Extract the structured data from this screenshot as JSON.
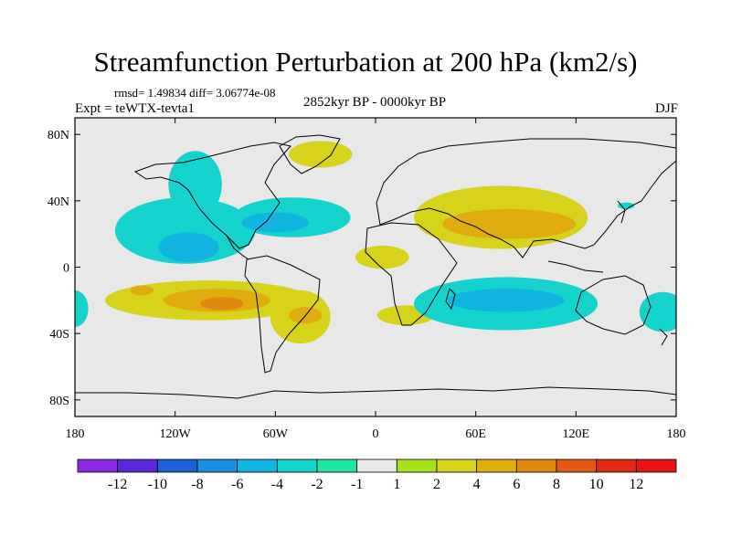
{
  "chart_data": {
    "type": "heatmap",
    "title": "Streamfunction Perturbation at 200 hPa (km2/s)",
    "stats": "rmsd= 1.49834 diff= 3.06774e-08",
    "experiment": "Expt = teWTX-tevta1",
    "period": "2852kyr BP - 0000kyr BP",
    "season": "DJF",
    "xlim": [
      -180,
      180
    ],
    "ylim": [
      -90,
      90
    ],
    "x_ticks": [
      {
        "value": -180,
        "label": "180"
      },
      {
        "value": -120,
        "label": "120W"
      },
      {
        "value": -60,
        "label": "60W"
      },
      {
        "value": 0,
        "label": "0"
      },
      {
        "value": 60,
        "label": "60E"
      },
      {
        "value": 120,
        "label": "120E"
      },
      {
        "value": 180,
        "label": "180"
      }
    ],
    "y_ticks": [
      {
        "value": 80,
        "label": "80N"
      },
      {
        "value": 40,
        "label": "40N"
      },
      {
        "value": 0,
        "label": "0"
      },
      {
        "value": -40,
        "label": "40S"
      },
      {
        "value": -80,
        "label": "80S"
      }
    ],
    "colorbar": {
      "labels": [
        "-12",
        "-10",
        "-8",
        "-6",
        "-4",
        "-2",
        "-1",
        "1",
        "2",
        "4",
        "6",
        "8",
        "10",
        "12"
      ],
      "colors": [
        "#8a2be2",
        "#5a28d8",
        "#1e5fd6",
        "#1a8ee0",
        "#12b4e0",
        "#14d2cc",
        "#1fe5a0",
        "#e8e8e8",
        "#a6e21e",
        "#d7d21a",
        "#e0ad10",
        "#e08a10",
        "#e05a14",
        "#e02a14",
        "#e61414"
      ]
    },
    "regions": [
      {
        "name": "n-america-west-negative",
        "lon": -114,
        "lat": 22,
        "rx": 42,
        "ry": 20,
        "level": -2
      },
      {
        "name": "n-america-west-inner",
        "lon": -112,
        "lat": 12,
        "rx": 18,
        "ry": 9,
        "level": -4
      },
      {
        "name": "alaska-arm",
        "lon": -108,
        "lat": 50,
        "rx": 16,
        "ry": 20,
        "level": -2
      },
      {
        "name": "north-atlantic-negative",
        "lon": -50,
        "lat": 30,
        "rx": 35,
        "ry": 12,
        "level": -2
      },
      {
        "name": "north-atlantic-inner",
        "lon": -60,
        "lat": 27,
        "rx": 20,
        "ry": 6,
        "level": -4
      },
      {
        "name": "greenland-positive",
        "lon": -33,
        "lat": 68,
        "rx": 19,
        "ry": 8,
        "level": 2
      },
      {
        "name": "south-pacific-positive",
        "lon": -100,
        "lat": -20,
        "rx": 62,
        "ry": 12,
        "level": 2
      },
      {
        "name": "south-pacific-mid",
        "lon": -95,
        "lat": -20,
        "rx": 32,
        "ry": 7,
        "level": 4
      },
      {
        "name": "south-pacific-core",
        "lon": -92,
        "lat": -22,
        "rx": 13,
        "ry": 4,
        "level": 6
      },
      {
        "name": "south-pacific-west",
        "lon": -140,
        "lat": -14,
        "rx": 7,
        "ry": 3,
        "level": 4
      },
      {
        "name": "south-america-positive",
        "lon": -45,
        "lat": -30,
        "rx": 18,
        "ry": 16,
        "level": 2
      },
      {
        "name": "south-america-mid",
        "lon": -42,
        "lat": -29,
        "rx": 10,
        "ry": 5,
        "level": 4
      },
      {
        "name": "africa-positive",
        "lon": 4,
        "lat": 6,
        "rx": 16,
        "ry": 7,
        "level": 2
      },
      {
        "name": "south-atlantic-positive",
        "lon": 18,
        "lat": -29,
        "rx": 17,
        "ry": 6,
        "level": 2
      },
      {
        "name": "asia-positive",
        "lon": 75,
        "lat": 30,
        "rx": 52,
        "ry": 19,
        "level": 2
      },
      {
        "name": "asia-inner",
        "lon": 80,
        "lat": 26,
        "rx": 40,
        "ry": 9,
        "level": 4
      },
      {
        "name": "indian-ocean-negative",
        "lon": 78,
        "lat": -22,
        "rx": 55,
        "ry": 16,
        "level": -2
      },
      {
        "name": "indian-ocean-inner",
        "lon": 78,
        "lat": -20,
        "rx": 35,
        "ry": 7,
        "level": -4
      },
      {
        "name": "dateline-east-negative",
        "lon": 172,
        "lat": -27,
        "rx": 14,
        "ry": 12,
        "level": -2
      },
      {
        "name": "dateline-west-negative",
        "lon": -180,
        "lat": -25,
        "rx": 8,
        "ry": 11,
        "level": -2
      },
      {
        "name": "west-pacific-small",
        "lon": 150,
        "lat": 37,
        "rx": 5,
        "ry": 2,
        "level": -2
      }
    ]
  }
}
